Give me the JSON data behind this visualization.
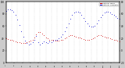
{
  "bg_color": "#cccccc",
  "plot_bg": "#ffffff",
  "legend_labels": [
    "Outdoor Humidity",
    "Outdoor Temp"
  ],
  "legend_colors": [
    "#0000cc",
    "#cc0000"
  ],
  "humidity_color": "#0000cc",
  "temperature_color": "#cc0000",
  "dot_size": 1.2,
  "xlim": [
    0,
    120
  ],
  "ylim_left": [
    0,
    100
  ],
  "ylim_right": [
    -20,
    80
  ],
  "grid_color": "#bbbbbb",
  "humidity_x": [
    0,
    2,
    4,
    6,
    8,
    10,
    12,
    14,
    16,
    18,
    20,
    22,
    24,
    26,
    28,
    30,
    32,
    34,
    36,
    38,
    40,
    42,
    44,
    46,
    48,
    50,
    52,
    54,
    56,
    58,
    60,
    62,
    64,
    66,
    68,
    70,
    72,
    74,
    76,
    78,
    80,
    82,
    84,
    86,
    88,
    90,
    92,
    94,
    96,
    98,
    100,
    102,
    104,
    106,
    108,
    110,
    112,
    114,
    116,
    118,
    120
  ],
  "humidity_y": [
    85,
    87,
    88,
    86,
    83,
    78,
    71,
    62,
    52,
    43,
    36,
    32,
    30,
    31,
    34,
    38,
    44,
    34,
    30,
    32,
    35,
    34,
    33,
    35,
    34,
    36,
    37,
    38,
    40,
    43,
    47,
    52,
    58,
    65,
    72,
    78,
    82,
    84,
    84,
    82,
    78,
    73,
    68,
    64,
    61,
    59,
    59,
    61,
    65,
    70,
    75,
    79,
    82,
    83,
    83,
    82,
    80,
    78,
    76,
    74,
    72
  ],
  "temp_x": [
    0,
    2,
    4,
    6,
    8,
    10,
    12,
    14,
    16,
    18,
    20,
    22,
    24,
    26,
    28,
    30,
    32,
    34,
    36,
    38,
    40,
    42,
    44,
    46,
    48,
    50,
    52,
    54,
    56,
    58,
    60,
    62,
    64,
    66,
    68,
    70,
    72,
    74,
    76,
    78,
    80,
    82,
    84,
    86,
    88,
    90,
    92,
    94,
    96,
    98,
    100,
    102,
    104,
    106,
    108,
    110,
    112,
    114,
    116,
    118,
    120
  ],
  "temp_y": [
    20,
    19,
    18,
    17,
    16,
    15,
    14,
    14,
    13,
    13,
    13,
    14,
    15,
    16,
    18,
    22,
    26,
    30,
    30,
    28,
    25,
    22,
    20,
    18,
    17,
    17,
    16,
    16,
    16,
    17,
    18,
    20,
    22,
    24,
    25,
    25,
    24,
    23,
    22,
    21,
    20,
    19,
    18,
    18,
    18,
    19,
    20,
    22,
    24,
    25,
    25,
    24,
    23,
    22,
    21,
    20,
    19,
    18,
    17,
    16,
    15
  ],
  "yticks_left": [
    0,
    20,
    40,
    60,
    80,
    100
  ],
  "yticks_right": [
    -20,
    0,
    20,
    40,
    60,
    80
  ],
  "n_xgrid": 20
}
